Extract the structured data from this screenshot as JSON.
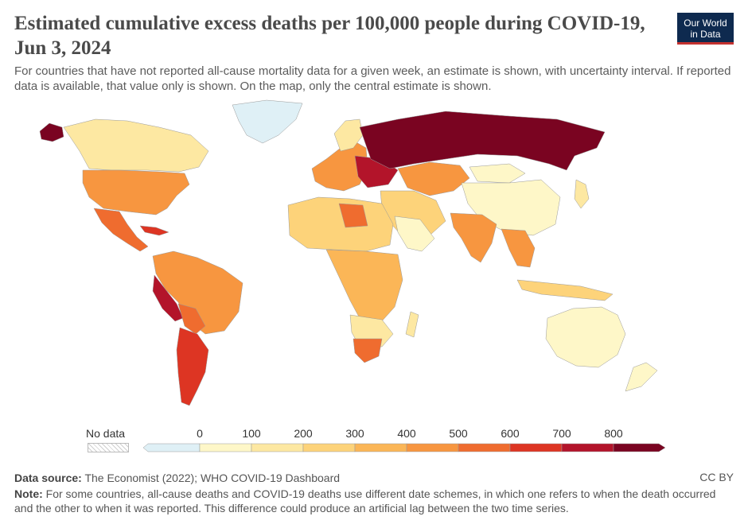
{
  "title": "Estimated cumulative excess deaths per 100,000 people during COVID-19, Jun 3, 2024",
  "subtitle": "For countries that have not reported all-cause mortality data for a given week, an estimate is shown, with uncertainty interval. If reported data is available, that value only is shown. On the map, only the central estimate is shown.",
  "logo": {
    "line1": "Our World",
    "line2": "in Data"
  },
  "legend": {
    "no_data_label": "No data",
    "ticks": [
      "0",
      "100",
      "200",
      "300",
      "400",
      "500",
      "600",
      "700",
      "800"
    ],
    "colors": [
      "#dff0f6",
      "#fef7c8",
      "#fde8a2",
      "#fdd37a",
      "#fbb657",
      "#f79640",
      "#ef6c2f",
      "#dd3523",
      "#b3142a",
      "#7a0421"
    ]
  },
  "footer": {
    "source_label": "Data source:",
    "source_text": "The Economist (2022); WHO COVID-19 Dashboard",
    "note_label": "Note:",
    "note_text": "For some countries, all-cause deaths and COVID-19 deaths use different date schemes, in which one refers to when the death occurred and the other to when it was reported. This difference could produce an artificial lag between the two time series.",
    "license": "CC BY"
  }
}
